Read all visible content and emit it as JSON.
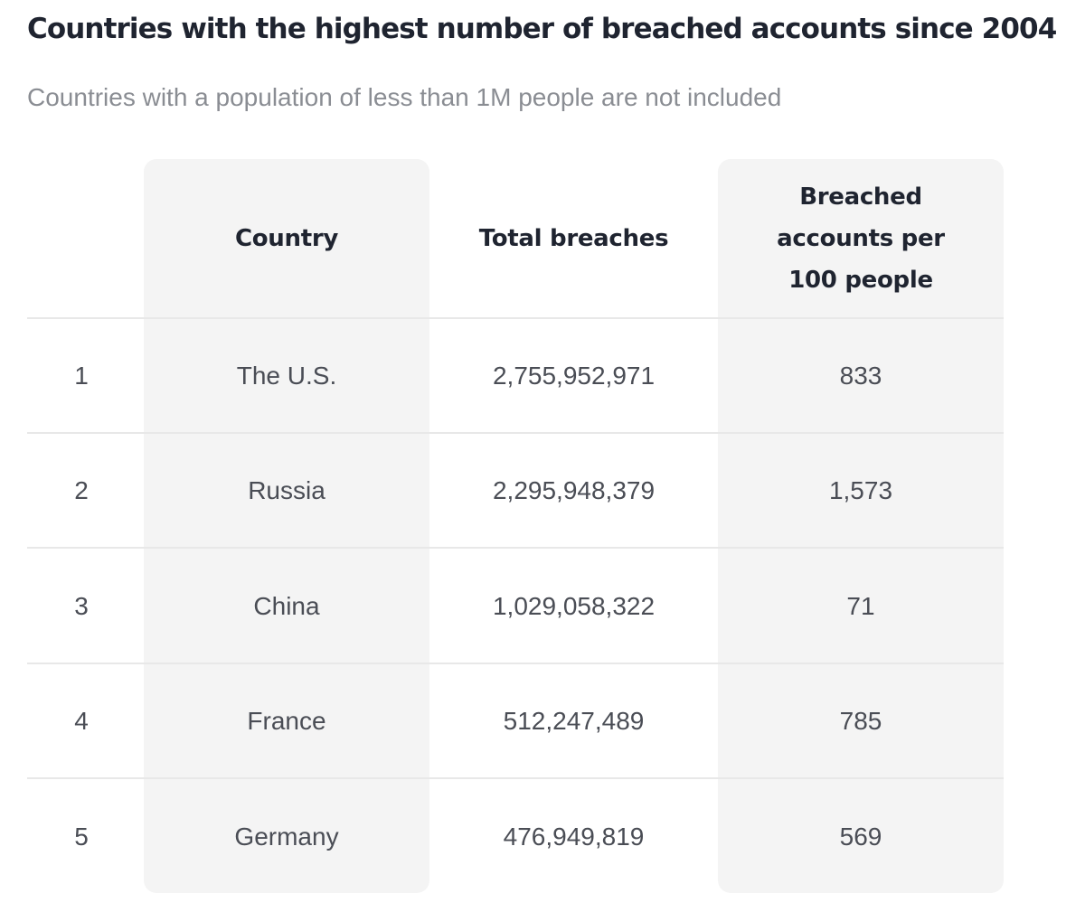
{
  "chart_data": {
    "type": "table",
    "title": "Countries with the highest number of breached accounts since 2004",
    "subtitle": "Countries with a population of less than 1M people are not included",
    "columns": [
      "",
      "Country",
      "Total breaches",
      "Breached accounts per 100 people"
    ],
    "rows": [
      {
        "rank": "1",
        "country": "The U.S.",
        "total": "2,755,952,971",
        "per100": "833"
      },
      {
        "rank": "2",
        "country": "Russia",
        "total": "2,295,948,379",
        "per100": "1,573"
      },
      {
        "rank": "3",
        "country": "China",
        "total": "1,029,058,322",
        "per100": "71"
      },
      {
        "rank": "4",
        "country": "France",
        "total": "512,247,489",
        "per100": "785"
      },
      {
        "rank": "5",
        "country": "Germany",
        "total": "476,949,819",
        "per100": "569"
      }
    ],
    "colors": {
      "highlight_column_bg": "#f4f4f4",
      "title": "#1f2430",
      "subtitle": "#8a8d93",
      "cell_text": "#4a4d55"
    }
  }
}
